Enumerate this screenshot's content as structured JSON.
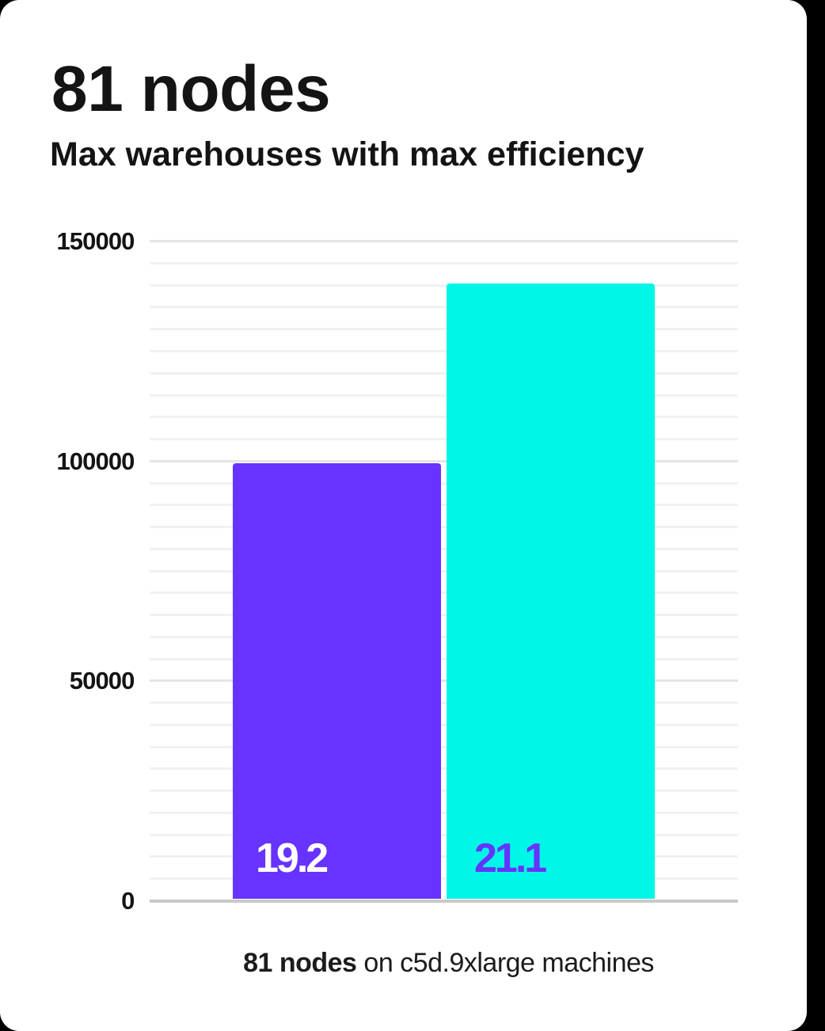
{
  "page": {
    "background_color": "#000000",
    "card_background_color": "#ffffff",
    "text_color": "#141414"
  },
  "header": {
    "title": "81 nodes",
    "subtitle": "Max warehouses with max efficiency"
  },
  "caption": {
    "bold_part": "81 nodes",
    "rest_part": " on c5d.9xlarge machines"
  },
  "chart_data": {
    "type": "bar",
    "title": "81 nodes",
    "subtitle": "Max warehouses with max efficiency",
    "caption": "81 nodes on c5d.9xlarge machines",
    "xlabel": "",
    "ylabel": "",
    "categories": [
      "19.2",
      "21.1"
    ],
    "series": [
      {
        "name": "19.2",
        "values": [
          99600
        ],
        "color": "#6633ff",
        "label_color": "#ffffff"
      },
      {
        "name": "21.1",
        "values": [
          140400
        ],
        "color": "#00f7e7",
        "label_color": "#6633ff"
      }
    ],
    "ylim": [
      0,
      150000
    ],
    "y_major_step": 50000,
    "y_minor_step": 5000,
    "y_tick_labels": [
      "0",
      "50000",
      "100000",
      "150000"
    ],
    "grid": true,
    "legend": false,
    "bar_labels_inside": true,
    "grid_major_color": "#e4e4e4",
    "grid_minor_color": "#f1f1f1",
    "axis_line_color": "#c9c9c9",
    "tick_label_color": "#141414"
  }
}
